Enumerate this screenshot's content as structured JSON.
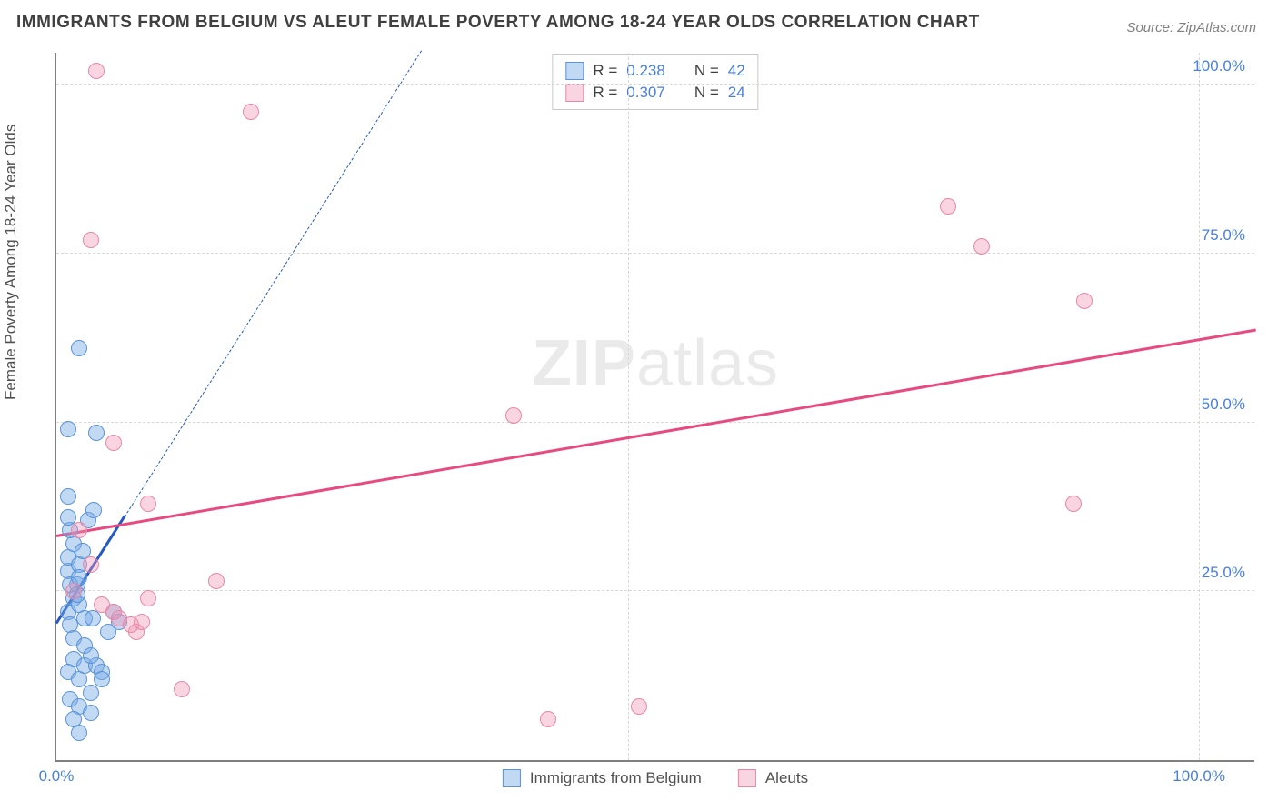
{
  "title": "IMMIGRANTS FROM BELGIUM VS ALEUT FEMALE POVERTY AMONG 18-24 YEAR OLDS CORRELATION CHART",
  "source_label": "Source: ZipAtlas.com",
  "watermark": {
    "bold": "ZIP",
    "rest": "atlas"
  },
  "chart": {
    "type": "scatter",
    "ylabel": "Female Poverty Among 18-24 Year Olds",
    "xlim": [
      0,
      105
    ],
    "ylim": [
      0,
      105
    ],
    "xticks": [
      0,
      100
    ],
    "yticks": [
      25,
      50,
      75,
      100
    ],
    "xtick_labels": [
      "0.0%",
      "100.0%"
    ],
    "ytick_labels": [
      "25.0%",
      "50.0%",
      "75.0%",
      "100.0%"
    ],
    "grid_y": [
      25,
      50,
      75,
      100
    ],
    "grid_x": [
      50,
      100
    ],
    "grid_color": "#d8d8d8",
    "axis_color": "#808080",
    "tick_label_color": "#4a7fd8",
    "background": "#ffffff",
    "point_radius": 9,
    "point_border_width": 1.5,
    "series": [
      {
        "name": "Immigrants from Belgium",
        "fill": "rgba(120,170,230,0.45)",
        "stroke": "#5a94d8",
        "trend_color": "#2458c4",
        "trend_width": 3,
        "trend_dash": "6 5",
        "trend_solid_until_x": 6,
        "R": "0.238",
        "N": "42",
        "trend": {
          "x1": 0,
          "y1": 20,
          "x2": 32,
          "y2": 105
        },
        "points": [
          [
            1,
            22
          ],
          [
            1.2,
            20
          ],
          [
            1.5,
            24
          ],
          [
            1,
            28
          ],
          [
            2,
            23
          ],
          [
            1.8,
            26
          ],
          [
            2.5,
            21
          ],
          [
            1,
            30
          ],
          [
            1.5,
            32
          ],
          [
            2,
            29
          ],
          [
            1.2,
            34
          ],
          [
            2.3,
            31
          ],
          [
            1,
            36
          ],
          [
            2.8,
            35.5
          ],
          [
            1,
            13
          ],
          [
            1.5,
            15
          ],
          [
            2,
            12
          ],
          [
            2.5,
            14
          ],
          [
            1.2,
            9
          ],
          [
            2,
            8
          ],
          [
            3,
            10
          ],
          [
            3.5,
            14
          ],
          [
            4,
            13
          ],
          [
            3.2,
            21
          ],
          [
            4.5,
            19
          ],
          [
            5,
            22
          ],
          [
            5.5,
            20.5
          ],
          [
            1,
            49
          ],
          [
            3.5,
            48.5
          ],
          [
            2,
            61
          ],
          [
            2,
            4
          ],
          [
            3,
            7
          ],
          [
            1.5,
            6
          ],
          [
            1,
            39
          ],
          [
            3.3,
            37
          ],
          [
            1.5,
            18
          ],
          [
            2.5,
            17
          ],
          [
            3,
            15.5
          ],
          [
            4,
            12
          ],
          [
            1.2,
            26
          ],
          [
            2,
            27
          ],
          [
            1.8,
            24.5
          ]
        ]
      },
      {
        "name": "Aleuts",
        "fill": "rgba(240,150,180,0.40)",
        "stroke": "#e887a8",
        "trend_color": "#e84a7f",
        "trend_width": 3,
        "trend_dash": null,
        "R": "0.307",
        "N": "24",
        "trend": {
          "x1": 0,
          "y1": 33,
          "x2": 105,
          "y2": 63.5
        },
        "points": [
          [
            3.5,
            102
          ],
          [
            17,
            96
          ],
          [
            3,
            77
          ],
          [
            5,
            47
          ],
          [
            8,
            38
          ],
          [
            14,
            26.5
          ],
          [
            7,
            19
          ],
          [
            5,
            22
          ],
          [
            5.5,
            21
          ],
          [
            6.5,
            20
          ],
          [
            7.5,
            20.5
          ],
          [
            8,
            24
          ],
          [
            11,
            10.5
          ],
          [
            43,
            6
          ],
          [
            51,
            8
          ],
          [
            40,
            51
          ],
          [
            78,
            82
          ],
          [
            81,
            76
          ],
          [
            90,
            68
          ],
          [
            89,
            38
          ],
          [
            2,
            34
          ],
          [
            3,
            29
          ],
          [
            1.5,
            25
          ],
          [
            4,
            23
          ]
        ]
      }
    ],
    "legend_top": {
      "border_color": "#c8c8c8",
      "rows": [
        {
          "swatch_fill": "rgba(120,170,230,0.45)",
          "swatch_stroke": "#5a94d8",
          "r_label": "R =",
          "r_val": "0.238",
          "n_label": "N =",
          "n_val": "42"
        },
        {
          "swatch_fill": "rgba(240,150,180,0.40)",
          "swatch_stroke": "#e887a8",
          "r_label": "R =",
          "r_val": "0.307",
          "n_label": "N =",
          "n_val": "24"
        }
      ]
    },
    "legend_bottom": [
      {
        "swatch_fill": "rgba(120,170,230,0.45)",
        "swatch_stroke": "#5a94d8",
        "label": "Immigrants from Belgium"
      },
      {
        "swatch_fill": "rgba(240,150,180,0.40)",
        "swatch_stroke": "#e887a8",
        "label": "Aleuts"
      }
    ]
  }
}
